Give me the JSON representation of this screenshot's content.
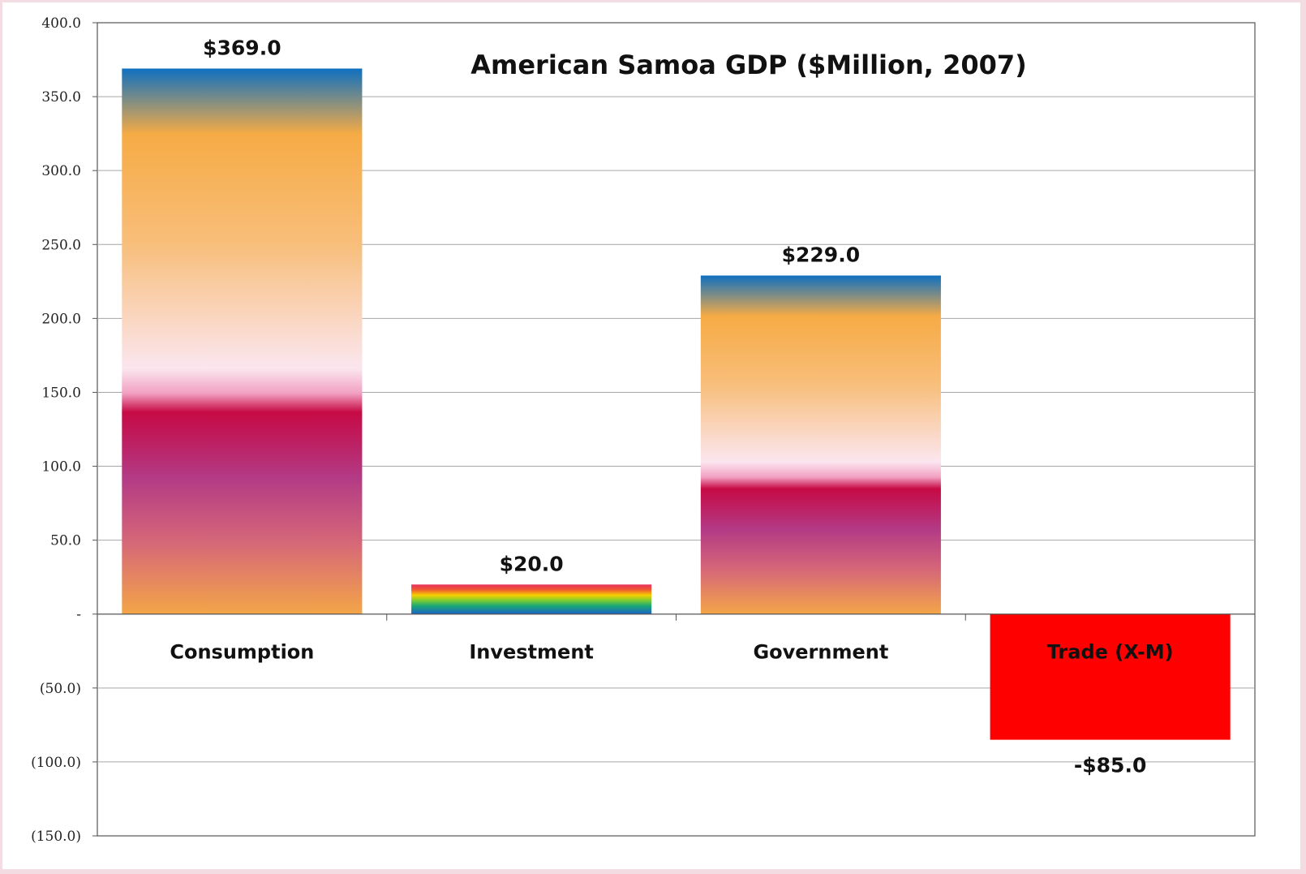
{
  "chart_data": {
    "type": "bar",
    "title": "American Samoa GDP ($Million, 2007)",
    "xlabel": "",
    "ylabel": "",
    "categories": [
      "Consumption",
      "Investment",
      "Government",
      "Trade (X-M)"
    ],
    "values": [
      369.0,
      20.0,
      229.0,
      -85.0
    ],
    "data_labels": [
      "$369.0",
      "$20.0",
      "$229.0",
      "-$85.0"
    ],
    "ylim": [
      -150,
      400
    ],
    "yticks": [
      400,
      350,
      300,
      250,
      200,
      150,
      100,
      50,
      0,
      -50,
      -100,
      -150
    ],
    "ytick_labels": [
      "400.0",
      "350.0",
      "300.0",
      "250.0",
      "200.0",
      "150.0",
      "100.0",
      "50.0",
      "-",
      "(50.0)",
      "(100.0)",
      "(150.0)"
    ],
    "grid": true,
    "legend": "none",
    "bar_fills": [
      "gradient-sunset",
      "gradient-rainbow",
      "gradient-sunset",
      "solid-red"
    ],
    "colors": {
      "negative_bar": "#ff0000",
      "gridline": "#a6a6a6",
      "axis": "#555555"
    }
  }
}
